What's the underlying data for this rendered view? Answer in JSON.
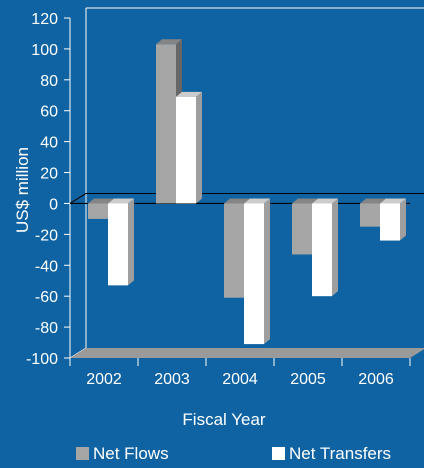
{
  "chart_data": {
    "type": "bar",
    "title": "",
    "xlabel": "Fiscal Year",
    "ylabel": "US$ million",
    "categories": [
      "2002",
      "2003",
      "2004",
      "2005",
      "2006"
    ],
    "ylim": [
      -100,
      120
    ],
    "yticks": [
      120,
      100,
      80,
      60,
      40,
      20,
      0,
      -20,
      -40,
      -60,
      -80,
      -100
    ],
    "grid": false,
    "legend_position": "bottom",
    "series": [
      {
        "name": "Net Flows",
        "color": "#a6a6a6",
        "values": [
          -10,
          103,
          -61,
          -33,
          -15
        ]
      },
      {
        "name": "Net Transfers",
        "color": "#ffffff",
        "values": [
          -53,
          69,
          -91,
          -60,
          -24
        ]
      }
    ],
    "colors": {
      "background": "#0f63a3",
      "axis": "#ffffff",
      "floor": "#9a9a9a"
    }
  }
}
